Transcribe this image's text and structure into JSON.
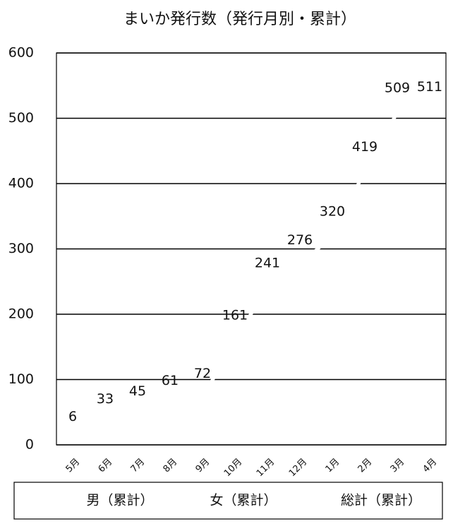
{
  "chart_data": {
    "type": "line",
    "title": "まいか発行数（発行月別・累計）",
    "categories": [
      "5月",
      "6月",
      "7月",
      "8月",
      "9月",
      "10月",
      "11月",
      "12月",
      "1月",
      "2月",
      "3月",
      "4月"
    ],
    "series": [
      {
        "name": "男（累計）",
        "color": "#ffffff",
        "values": [
          null,
          null,
          null,
          null,
          null,
          null,
          null,
          null,
          null,
          null,
          null,
          null
        ]
      },
      {
        "name": "女（累計）",
        "color": "#ffffff",
        "values": [
          null,
          null,
          null,
          null,
          null,
          null,
          null,
          null,
          null,
          null,
          null,
          null
        ]
      },
      {
        "name": "総計（累計）",
        "color": "#ffffff",
        "values": [
          6,
          33,
          45,
          61,
          72,
          161,
          241,
          276,
          320,
          419,
          509,
          511
        ],
        "data_labels": true
      }
    ],
    "ylim": [
      0,
      600
    ],
    "yticks": [
      0,
      100,
      200,
      300,
      400,
      500,
      600
    ],
    "grid": true,
    "legend": "bottom"
  }
}
